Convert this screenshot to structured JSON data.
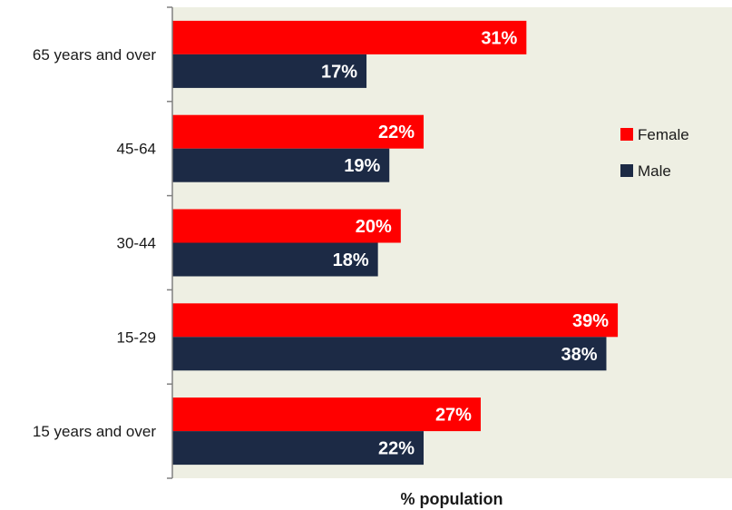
{
  "chart_data": {
    "type": "bar",
    "orientation": "horizontal",
    "categories": [
      "65 years and over",
      "45-64",
      "30-44",
      "15-29",
      "15 years and over"
    ],
    "series": [
      {
        "name": "Female",
        "color": "#ff0000",
        "values": [
          31,
          22,
          20,
          39,
          27
        ],
        "labels": [
          "31%",
          "22%",
          "20%",
          "39%",
          "27%"
        ]
      },
      {
        "name": "Male",
        "color": "#1c2a45",
        "values": [
          17,
          19,
          18,
          38,
          22
        ],
        "labels": [
          "17%",
          "19%",
          "18%",
          "38%",
          "22%"
        ]
      }
    ],
    "xlabel": "% population",
    "ylabel": "",
    "xlim": [
      0,
      49
    ],
    "legend": "right",
    "grid": false,
    "plot_background": "#eeefe3"
  }
}
